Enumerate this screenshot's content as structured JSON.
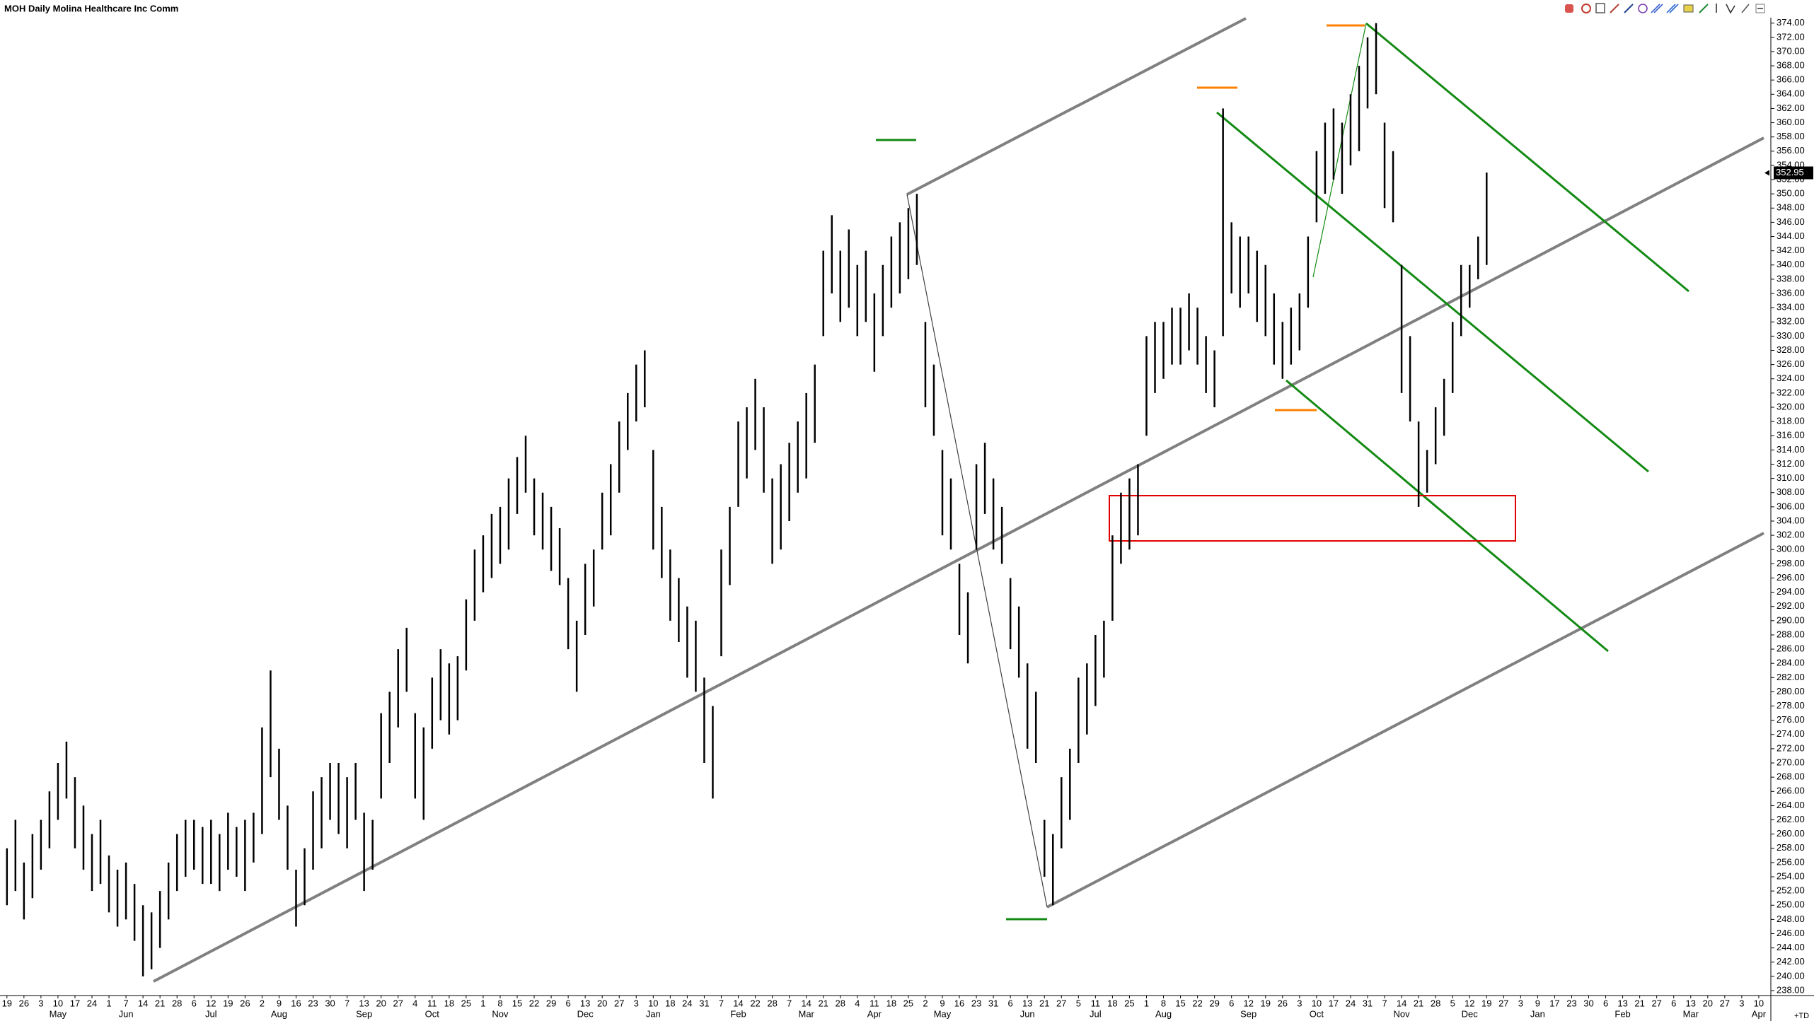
{
  "header": {
    "title": "MOH Daily Molina Healthcare Inc Comm"
  },
  "chart_data": {
    "type": "ohlc",
    "color": "#000000",
    "grid": false,
    "ylim": [
      238,
      374
    ],
    "yticks": [
      {
        "value": 238,
        "label": "238.00"
      },
      {
        "value": 240,
        "label": "240.00"
      },
      {
        "value": 242,
        "label": "242.00"
      },
      {
        "value": 244,
        "label": "244.00"
      },
      {
        "value": 246,
        "label": "246.00"
      },
      {
        "value": 248,
        "label": "248.00"
      },
      {
        "value": 250,
        "label": "250.00"
      },
      {
        "value": 252,
        "label": "252.00"
      },
      {
        "value": 254,
        "label": "254.00"
      },
      {
        "value": 256,
        "label": "256.00"
      },
      {
        "value": 258,
        "label": "258.00"
      },
      {
        "value": 260,
        "label": "260.00"
      },
      {
        "value": 262,
        "label": "262.00"
      },
      {
        "value": 264,
        "label": "264.00"
      },
      {
        "value": 266,
        "label": "266.00"
      },
      {
        "value": 268,
        "label": "268.00"
      },
      {
        "value": 270,
        "label": "270.00"
      },
      {
        "value": 272,
        "label": "272.00"
      },
      {
        "value": 274,
        "label": "274.00"
      },
      {
        "value": 276,
        "label": "276.00"
      },
      {
        "value": 278,
        "label": "278.00"
      },
      {
        "value": 280,
        "label": "280.00"
      },
      {
        "value": 282,
        "label": "282.00"
      },
      {
        "value": 284,
        "label": "284.00"
      },
      {
        "value": 286,
        "label": "286.00"
      },
      {
        "value": 288,
        "label": "288.00"
      },
      {
        "value": 290,
        "label": "290.00"
      },
      {
        "value": 292,
        "label": "292.00"
      },
      {
        "value": 294,
        "label": "294.00"
      },
      {
        "value": 296,
        "label": "296.00"
      },
      {
        "value": 298,
        "label": "298.00"
      },
      {
        "value": 300,
        "label": "300.00"
      },
      {
        "value": 302,
        "label": "302.00"
      },
      {
        "value": 304,
        "label": "304.00"
      },
      {
        "value": 306,
        "label": "306.00"
      },
      {
        "value": 308,
        "label": "308.00"
      },
      {
        "value": 310,
        "label": "310.00"
      },
      {
        "value": 312,
        "label": "312.00"
      },
      {
        "value": 314,
        "label": "314.00"
      },
      {
        "value": 316,
        "label": "316.00"
      },
      {
        "value": 318,
        "label": "318.00"
      },
      {
        "value": 320,
        "label": "320.00"
      },
      {
        "value": 322,
        "label": "322.00"
      },
      {
        "value": 324,
        "label": "324.00"
      },
      {
        "value": 326,
        "label": "326.00"
      },
      {
        "value": 328,
        "label": "328.00"
      },
      {
        "value": 330,
        "label": "330.00"
      },
      {
        "value": 332,
        "label": "332.00"
      },
      {
        "value": 334,
        "label": "334.00"
      },
      {
        "value": 336,
        "label": "336.00"
      },
      {
        "value": 338,
        "label": "338.00"
      },
      {
        "value": 340,
        "label": "340.00"
      },
      {
        "value": 342,
        "label": "342.00"
      },
      {
        "value": 344,
        "label": "344.00"
      },
      {
        "value": 346,
        "label": "346.00"
      },
      {
        "value": 348,
        "label": "348.00"
      },
      {
        "value": 350,
        "label": "350.00"
      },
      {
        "value": 352,
        "label": "352.00"
      },
      {
        "value": 354,
        "label": "354.00"
      },
      {
        "value": 356,
        "label": "356.00"
      },
      {
        "value": 358,
        "label": "358.00"
      },
      {
        "value": 360,
        "label": "360.00"
      },
      {
        "value": 362,
        "label": "362.00"
      },
      {
        "value": 364,
        "label": "364.00"
      },
      {
        "value": 366,
        "label": "366.00"
      },
      {
        "value": 368,
        "label": "368.00"
      },
      {
        "value": 370,
        "label": "370.00"
      },
      {
        "value": 372,
        "label": "372.00"
      },
      {
        "value": 374,
        "label": "374.00"
      }
    ],
    "last_price": 352.95,
    "corner_label": "+TD",
    "x_day_labels": [
      19,
      26,
      3,
      10,
      17,
      24,
      1,
      7,
      14,
      21,
      28,
      6,
      12,
      19,
      26,
      2,
      9,
      16,
      23,
      30,
      7,
      13,
      20,
      27,
      4,
      11,
      18,
      25,
      1,
      8,
      15,
      22,
      29,
      6,
      13,
      20,
      27,
      3,
      10,
      18,
      24,
      31,
      7,
      14,
      22,
      28,
      7,
      14,
      21,
      28,
      4,
      11,
      18,
      25,
      2,
      9,
      16,
      23,
      31,
      6,
      13,
      21,
      27,
      5,
      11,
      18,
      25,
      1,
      8,
      15,
      22,
      29,
      6,
      12,
      19,
      26,
      3,
      10,
      17,
      24,
      31,
      7,
      14,
      21,
      28,
      5,
      12,
      19,
      27,
      3,
      9,
      17,
      23,
      30,
      6,
      13,
      21,
      27,
      6,
      13,
      20,
      27,
      3,
      10
    ],
    "x_month_labels": [
      null,
      null,
      null,
      "May",
      null,
      null,
      null,
      "Jun",
      null,
      null,
      null,
      null,
      "Jul",
      null,
      null,
      null,
      "Aug",
      null,
      null,
      null,
      null,
      "Sep",
      null,
      null,
      null,
      "Oct",
      null,
      null,
      null,
      "Nov",
      null,
      null,
      null,
      null,
      "Dec",
      null,
      null,
      null,
      "Jan",
      null,
      null,
      null,
      null,
      "Feb",
      null,
      null,
      null,
      "Mar",
      null,
      null,
      null,
      "Apr",
      null,
      null,
      null,
      "May",
      null,
      null,
      null,
      null,
      "Jun",
      null,
      null,
      null,
      "Jul",
      null,
      null,
      null,
      "Aug",
      null,
      null,
      null,
      null,
      "Sep",
      null,
      null,
      null,
      "Oct",
      null,
      null,
      null,
      null,
      "Nov",
      null,
      null,
      null,
      "Dec",
      null,
      null,
      null,
      "Jan",
      null,
      null,
      null,
      null,
      "Feb",
      null,
      null,
      null,
      "Mar",
      null,
      null,
      null,
      "Apr"
    ],
    "low": [
      250,
      252,
      248,
      251,
      255,
      258,
      262,
      265,
      258,
      255,
      252,
      253,
      249,
      247,
      248,
      245,
      240,
      241,
      244,
      248,
      252,
      254,
      255,
      253,
      253,
      252,
      255,
      254,
      252,
      256,
      260,
      268,
      262,
      255,
      247,
      250,
      255,
      258,
      262,
      260,
      258,
      262,
      252,
      255,
      265,
      270,
      275,
      280,
      265,
      262,
      272,
      276,
      274,
      276,
      283,
      290,
      294,
      296,
      298,
      300,
      305,
      308,
      302,
      300,
      297,
      295,
      286,
      280,
      288,
      292,
      300,
      302,
      308,
      314,
      318,
      320,
      300,
      296,
      290,
      287,
      282,
      280,
      270,
      265,
      285,
      295,
      306,
      310,
      314,
      308,
      298,
      300,
      304,
      308,
      310,
      315,
      330,
      336,
      332,
      334,
      330,
      332,
      325,
      330,
      334,
      336,
      338,
      340,
      320,
      316,
      302,
      300,
      288,
      284,
      300,
      305,
      300,
      298,
      286,
      282,
      272,
      270,
      254,
      250,
      258,
      262,
      270,
      274,
      278,
      282,
      290,
      298,
      300,
      302,
      316,
      322,
      324,
      326,
      326,
      328,
      326,
      322,
      320,
      330,
      336,
      334,
      336,
      332,
      330,
      326,
      324,
      326,
      328,
      334,
      346,
      350,
      352,
      350,
      354,
      356,
      362,
      364,
      348,
      346,
      322,
      318,
      306,
      308,
      312,
      316,
      322,
      330,
      334,
      338,
      340
    ],
    "high": [
      258,
      262,
      256,
      260,
      262,
      266,
      270,
      273,
      268,
      264,
      260,
      262,
      257,
      255,
      256,
      253,
      250,
      249,
      252,
      256,
      260,
      262,
      262,
      261,
      262,
      260,
      263,
      261,
      262,
      263,
      275,
      283,
      272,
      264,
      255,
      258,
      266,
      268,
      270,
      270,
      268,
      270,
      263,
      262,
      277,
      280,
      286,
      289,
      277,
      275,
      282,
      286,
      284,
      285,
      293,
      300,
      302,
      305,
      306,
      310,
      313,
      316,
      310,
      308,
      306,
      303,
      296,
      290,
      298,
      300,
      308,
      312,
      318,
      322,
      326,
      328,
      314,
      306,
      300,
      296,
      292,
      290,
      282,
      278,
      300,
      306,
      318,
      320,
      324,
      320,
      310,
      312,
      315,
      318,
      322,
      326,
      342,
      347,
      342,
      345,
      340,
      342,
      336,
      340,
      344,
      346,
      348,
      350,
      332,
      326,
      314,
      310,
      298,
      294,
      312,
      315,
      310,
      306,
      296,
      292,
      284,
      280,
      262,
      260,
      268,
      272,
      282,
      284,
      288,
      290,
      302,
      308,
      310,
      312,
      330,
      332,
      332,
      334,
      334,
      336,
      334,
      330,
      328,
      362,
      346,
      344,
      344,
      342,
      340,
      336,
      332,
      334,
      336,
      344,
      356,
      360,
      362,
      360,
      364,
      368,
      372,
      374,
      360,
      356,
      340,
      330,
      318,
      314,
      320,
      324,
      332,
      340,
      340,
      344,
      353
    ]
  }
}
